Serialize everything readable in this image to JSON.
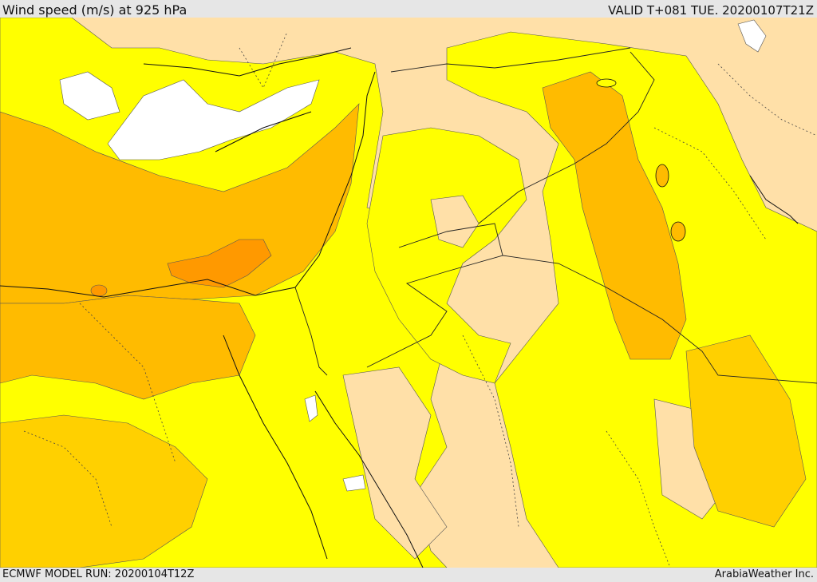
{
  "header": {
    "title": "Wind speed (m/s) at 925 hPa",
    "valid_time": "VALID T+081 TUE. 20200107T21Z"
  },
  "footer": {
    "model_run": "ECMWF MODEL RUN: 20200104T12Z",
    "credit": "ArabiaWeather Inc."
  },
  "legend_colors": {
    "calm": "#ffffff",
    "light": "#ffe0a8",
    "moderate": "#ffff00",
    "fresh": "#ffd000",
    "strong": "#ffbb00",
    "very_strong": "#ff9900"
  },
  "map_features": {
    "projection": "regional",
    "lines": [
      "coastlines",
      "country-borders",
      "province-borders",
      "speed-contours"
    ]
  }
}
